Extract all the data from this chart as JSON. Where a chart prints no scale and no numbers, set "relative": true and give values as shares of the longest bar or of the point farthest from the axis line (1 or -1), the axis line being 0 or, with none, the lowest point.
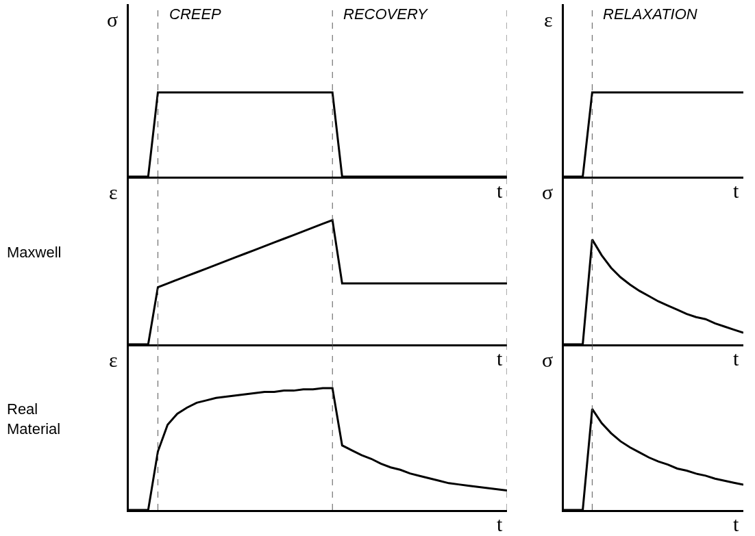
{
  "chart_data": [
    {
      "type": "line",
      "relative": true,
      "ylabel": "σ",
      "xlabel": "t",
      "categories": [
        null,
        null,
        null,
        null,
        null,
        null,
        null,
        null,
        null,
        null,
        null,
        null,
        null,
        null,
        null,
        null,
        null,
        null,
        null,
        null,
        null,
        null,
        null,
        null,
        null,
        null,
        null,
        null,
        null,
        null,
        null,
        null,
        null,
        null,
        null,
        null,
        null,
        null,
        null,
        null
      ],
      "series": [
        {
          "color": "#000000",
          "values": [
            0,
            0,
            0,
            1,
            1,
            1,
            1,
            1,
            1,
            1,
            1,
            1,
            1,
            1,
            1,
            1,
            1,
            1,
            1,
            1,
            1,
            1,
            0,
            0,
            0,
            0,
            0,
            0,
            0,
            0,
            0,
            0,
            0,
            0,
            0,
            0,
            0,
            0,
            0,
            0
          ]
        }
      ],
      "annotations": [
        "CREEP",
        "RECOVERY"
      ]
    },
    {
      "type": "line",
      "relative": true,
      "ylabel": "ε",
      "xlabel": "t",
      "categories": [
        null,
        null,
        null,
        null,
        null,
        null,
        null,
        null,
        null,
        null,
        null,
        null,
        null,
        null,
        null,
        null,
        null,
        null,
        null,
        null
      ],
      "series": [
        {
          "color": "#000000",
          "values": [
            0,
            0,
            0,
            1,
            1,
            1,
            1,
            1,
            1,
            1,
            1,
            1,
            1,
            1,
            1,
            1,
            1,
            1,
            1,
            1
          ]
        }
      ],
      "annotations": [
        "RELAXATION"
      ]
    },
    {
      "type": "line",
      "relative": true,
      "ylabel": "ε",
      "xlabel": "t",
      "categories": [
        null,
        null,
        null,
        null,
        null,
        null,
        null,
        null,
        null,
        null,
        null,
        null,
        null,
        null,
        null,
        null,
        null,
        null,
        null,
        null,
        null,
        null,
        null,
        null,
        null,
        null,
        null,
        null,
        null,
        null,
        null,
        null,
        null,
        null,
        null,
        null,
        null,
        null,
        null,
        null
      ],
      "series": [
        {
          "color": "#000000",
          "values": [
            0,
            0,
            0,
            0.46,
            0.49,
            0.52,
            0.55,
            0.58,
            0.61,
            0.64,
            0.67,
            0.7,
            0.73,
            0.76,
            0.79,
            0.82,
            0.85,
            0.88,
            0.91,
            0.94,
            0.97,
            1.0,
            0.49,
            0.49,
            0.49,
            0.49,
            0.49,
            0.49,
            0.49,
            0.49,
            0.49,
            0.49,
            0.49,
            0.49,
            0.49,
            0.49,
            0.49,
            0.49,
            0.49,
            0.49
          ]
        }
      ],
      "annotations": [
        "Maxwell"
      ]
    },
    {
      "type": "line",
      "relative": true,
      "ylabel": "σ",
      "xlabel": "t",
      "categories": [
        null,
        null,
        null,
        null,
        null,
        null,
        null,
        null,
        null,
        null,
        null,
        null,
        null,
        null,
        null,
        null,
        null,
        null,
        null,
        null
      ],
      "series": [
        {
          "color": "#000000",
          "values": [
            0,
            0,
            0,
            1.0,
            0.85,
            0.73,
            0.64,
            0.57,
            0.51,
            0.46,
            0.41,
            0.37,
            0.33,
            0.29,
            0.26,
            0.24,
            0.2,
            0.17,
            0.14,
            0.11
          ]
        }
      ]
    },
    {
      "type": "line",
      "relative": true,
      "ylabel": "ε",
      "xlabel": "t",
      "categories": [
        null,
        null,
        null,
        null,
        null,
        null,
        null,
        null,
        null,
        null,
        null,
        null,
        null,
        null,
        null,
        null,
        null,
        null,
        null,
        null,
        null,
        null,
        null,
        null,
        null,
        null,
        null,
        null,
        null,
        null,
        null,
        null,
        null,
        null,
        null,
        null,
        null,
        null,
        null,
        null
      ],
      "series": [
        {
          "color": "#000000",
          "values": [
            0,
            0,
            0,
            0.48,
            0.7,
            0.79,
            0.84,
            0.88,
            0.9,
            0.92,
            0.93,
            0.94,
            0.95,
            0.96,
            0.97,
            0.97,
            0.98,
            0.98,
            0.99,
            0.99,
            1.0,
            1.0,
            0.53,
            0.49,
            0.45,
            0.42,
            0.38,
            0.35,
            0.33,
            0.3,
            0.28,
            0.26,
            0.24,
            0.22,
            0.21,
            0.2,
            0.19,
            0.18,
            0.17,
            0.16
          ]
        }
      ],
      "annotations": [
        "Real Material"
      ]
    },
    {
      "type": "line",
      "relative": true,
      "ylabel": "σ",
      "xlabel": "t",
      "categories": [
        null,
        null,
        null,
        null,
        null,
        null,
        null,
        null,
        null,
        null,
        null,
        null,
        null,
        null,
        null,
        null,
        null,
        null,
        null,
        null
      ],
      "series": [
        {
          "color": "#000000",
          "values": [
            0,
            0,
            0,
            1.0,
            0.86,
            0.76,
            0.68,
            0.62,
            0.57,
            0.52,
            0.48,
            0.45,
            0.41,
            0.39,
            0.36,
            0.34,
            0.31,
            0.29,
            0.27,
            0.25
          ]
        }
      ]
    }
  ]
}
